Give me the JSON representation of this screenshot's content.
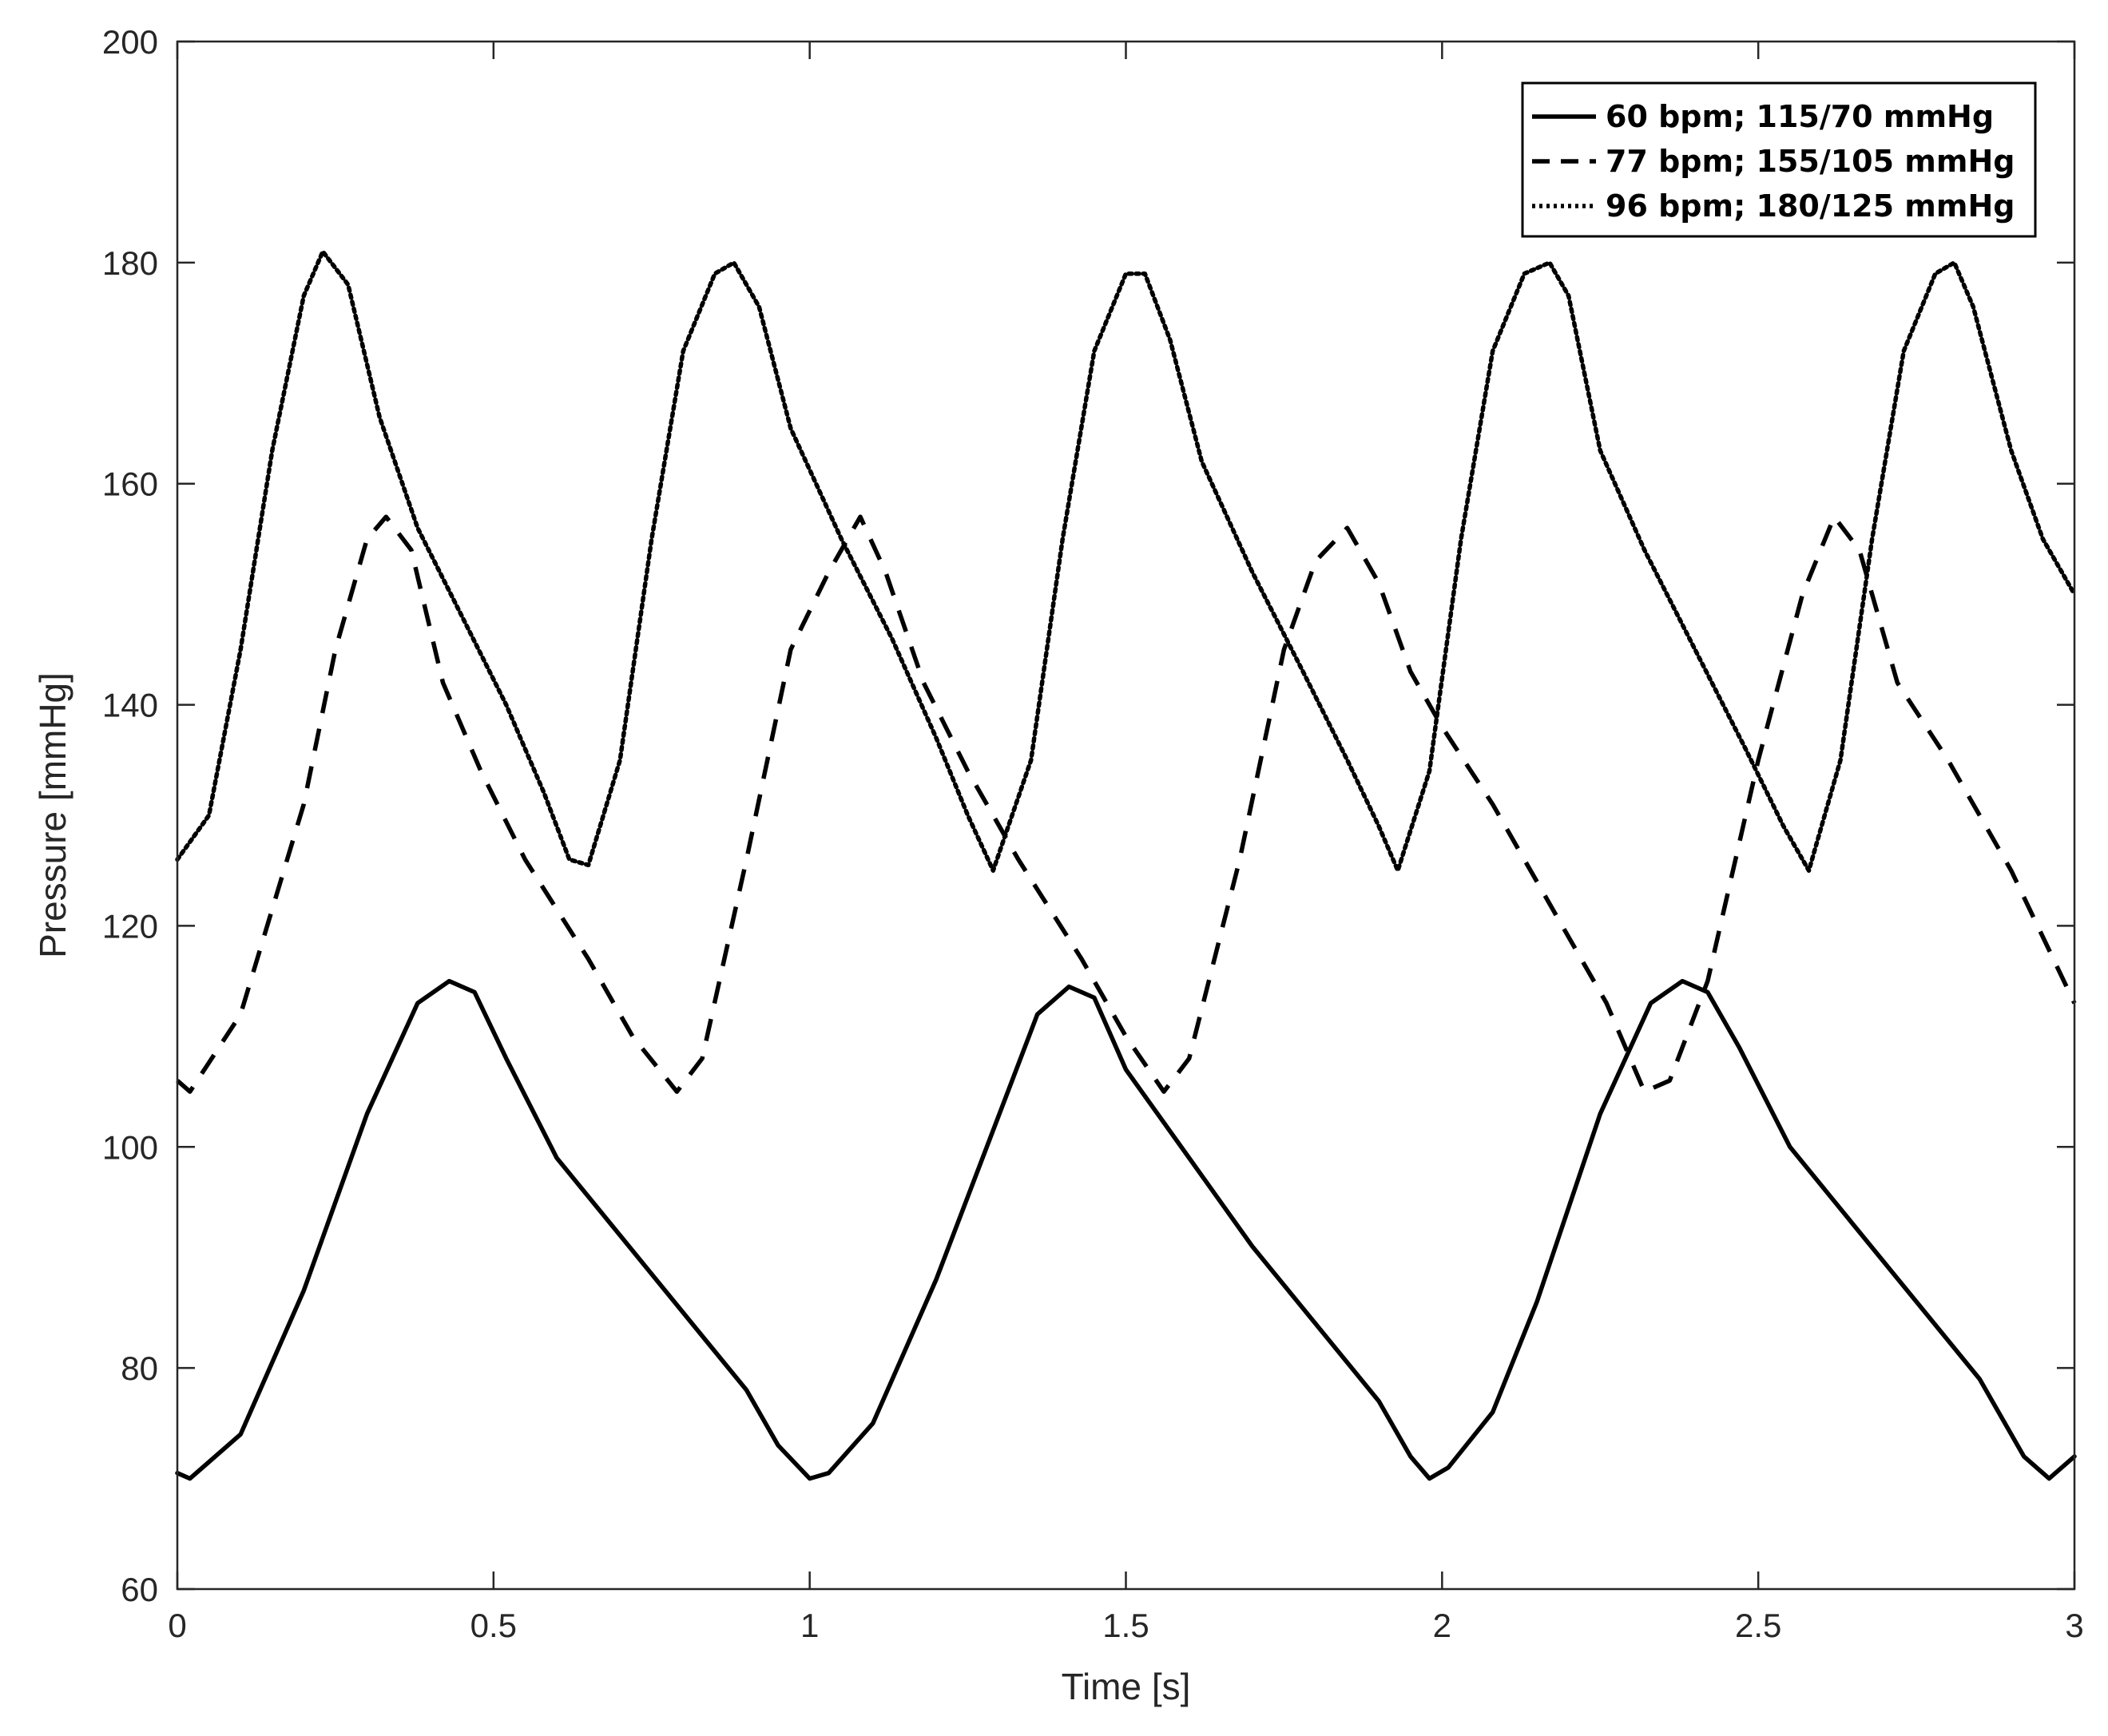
{
  "chart_data": {
    "type": "line",
    "title": "",
    "xlabel": "Time [s]",
    "ylabel": "Pressure [mmHg]",
    "xlim": [
      0,
      3
    ],
    "ylim": [
      60,
      200
    ],
    "xticks": [
      0,
      0.5,
      1,
      1.5,
      2,
      2.5,
      3
    ],
    "xtick_labels": [
      "0",
      "0.5",
      "1",
      "1.5",
      "2",
      "2.5",
      "3"
    ],
    "yticks": [
      60,
      80,
      100,
      120,
      140,
      160,
      180,
      200
    ],
    "ytick_labels": [
      "60",
      "80",
      "100",
      "120",
      "140",
      "160",
      "180",
      "200"
    ],
    "grid": false,
    "legend_position": "top-right",
    "series": [
      {
        "name": "60 bpm; 115/70 mmHg",
        "line_style": "solid",
        "color": "#000000",
        "points": [
          [
            0,
            70.5
          ],
          [
            0.02,
            70
          ],
          [
            0.1,
            74
          ],
          [
            0.2,
            87
          ],
          [
            0.3,
            103
          ],
          [
            0.38,
            113
          ],
          [
            0.43,
            115
          ],
          [
            0.47,
            114
          ],
          [
            0.52,
            108
          ],
          [
            0.6,
            99
          ],
          [
            0.7,
            92
          ],
          [
            0.8,
            85
          ],
          [
            0.9,
            78
          ],
          [
            0.95,
            73
          ],
          [
            1.0,
            70
          ],
          [
            1.03,
            70.5
          ],
          [
            1.1,
            75
          ],
          [
            1.2,
            88
          ],
          [
            1.3,
            103
          ],
          [
            1.36,
            112
          ],
          [
            1.41,
            114.5
          ],
          [
            1.45,
            113.5
          ],
          [
            1.5,
            107
          ],
          [
            1.6,
            99
          ],
          [
            1.7,
            91
          ],
          [
            1.8,
            84
          ],
          [
            1.9,
            77
          ],
          [
            1.95,
            72
          ],
          [
            1.98,
            70
          ],
          [
            2.01,
            71
          ],
          [
            2.08,
            76
          ],
          [
            2.15,
            86
          ],
          [
            2.25,
            103
          ],
          [
            2.33,
            113
          ],
          [
            2.38,
            115
          ],
          [
            2.42,
            114
          ],
          [
            2.47,
            109
          ],
          [
            2.55,
            100
          ],
          [
            2.65,
            93
          ],
          [
            2.75,
            86
          ],
          [
            2.85,
            79
          ],
          [
            2.92,
            72
          ],
          [
            2.96,
            70
          ],
          [
            3.0,
            72
          ]
        ]
      },
      {
        "name": "77 bpm; 155/105 mmHg",
        "line_style": "dashed",
        "color": "#000000",
        "points": [
          [
            0,
            106
          ],
          [
            0.02,
            105
          ],
          [
            0.1,
            112
          ],
          [
            0.2,
            131
          ],
          [
            0.25,
            145
          ],
          [
            0.3,
            155
          ],
          [
            0.33,
            157
          ],
          [
            0.37,
            154
          ],
          [
            0.42,
            142
          ],
          [
            0.48,
            134
          ],
          [
            0.55,
            126
          ],
          [
            0.65,
            117
          ],
          [
            0.72,
            110
          ],
          [
            0.79,
            105
          ],
          [
            0.83,
            108
          ],
          [
            0.9,
            126
          ],
          [
            0.97,
            145
          ],
          [
            1.03,
            152
          ],
          [
            1.08,
            157
          ],
          [
            1.12,
            152
          ],
          [
            1.18,
            142
          ],
          [
            1.25,
            134
          ],
          [
            1.33,
            126
          ],
          [
            1.43,
            117
          ],
          [
            1.5,
            110
          ],
          [
            1.56,
            105
          ],
          [
            1.6,
            108
          ],
          [
            1.68,
            126
          ],
          [
            1.75,
            145
          ],
          [
            1.8,
            153
          ],
          [
            1.85,
            156
          ],
          [
            1.9,
            151
          ],
          [
            1.95,
            143
          ],
          [
            2.0,
            138
          ],
          [
            2.08,
            131
          ],
          [
            2.18,
            121
          ],
          [
            2.26,
            113
          ],
          [
            2.32,
            105
          ],
          [
            2.36,
            106
          ],
          [
            2.42,
            115
          ],
          [
            2.5,
            135
          ],
          [
            2.57,
            150
          ],
          [
            2.62,
            157
          ],
          [
            2.66,
            154
          ],
          [
            2.72,
            142
          ],
          [
            2.8,
            135
          ],
          [
            2.9,
            125
          ],
          [
            3.0,
            113
          ]
        ]
      },
      {
        "name": "96 bpm; 180/125 mmHg",
        "line_style": "dotted",
        "color": "#000000",
        "points": [
          [
            0,
            126
          ],
          [
            0.05,
            130
          ],
          [
            0.1,
            145
          ],
          [
            0.15,
            163
          ],
          [
            0.2,
            177
          ],
          [
            0.23,
            181
          ],
          [
            0.27,
            178
          ],
          [
            0.32,
            166
          ],
          [
            0.38,
            156
          ],
          [
            0.45,
            148
          ],
          [
            0.52,
            140
          ],
          [
            0.58,
            132
          ],
          [
            0.62,
            126
          ],
          [
            0.65,
            125.5
          ],
          [
            0.7,
            135
          ],
          [
            0.75,
            155
          ],
          [
            0.8,
            172
          ],
          [
            0.85,
            179
          ],
          [
            0.88,
            180
          ],
          [
            0.92,
            176
          ],
          [
            0.97,
            165
          ],
          [
            1.05,
            155
          ],
          [
            1.13,
            146
          ],
          [
            1.2,
            137
          ],
          [
            1.25,
            130
          ],
          [
            1.29,
            125
          ],
          [
            1.35,
            135
          ],
          [
            1.4,
            155
          ],
          [
            1.45,
            172
          ],
          [
            1.5,
            179
          ],
          [
            1.53,
            179
          ],
          [
            1.57,
            173
          ],
          [
            1.62,
            162
          ],
          [
            1.7,
            152
          ],
          [
            1.78,
            143
          ],
          [
            1.85,
            135
          ],
          [
            1.9,
            129
          ],
          [
            1.93,
            125
          ],
          [
            1.98,
            134
          ],
          [
            2.03,
            155
          ],
          [
            2.08,
            172
          ],
          [
            2.13,
            179
          ],
          [
            2.17,
            180
          ],
          [
            2.2,
            177
          ],
          [
            2.25,
            163
          ],
          [
            2.32,
            154
          ],
          [
            2.4,
            145
          ],
          [
            2.48,
            136
          ],
          [
            2.54,
            129
          ],
          [
            2.58,
            125
          ],
          [
            2.63,
            135
          ],
          [
            2.68,
            155
          ],
          [
            2.73,
            172
          ],
          [
            2.78,
            179
          ],
          [
            2.81,
            180
          ],
          [
            2.84,
            176
          ],
          [
            2.9,
            163
          ],
          [
            2.95,
            155
          ],
          [
            3.0,
            150
          ]
        ]
      }
    ]
  }
}
